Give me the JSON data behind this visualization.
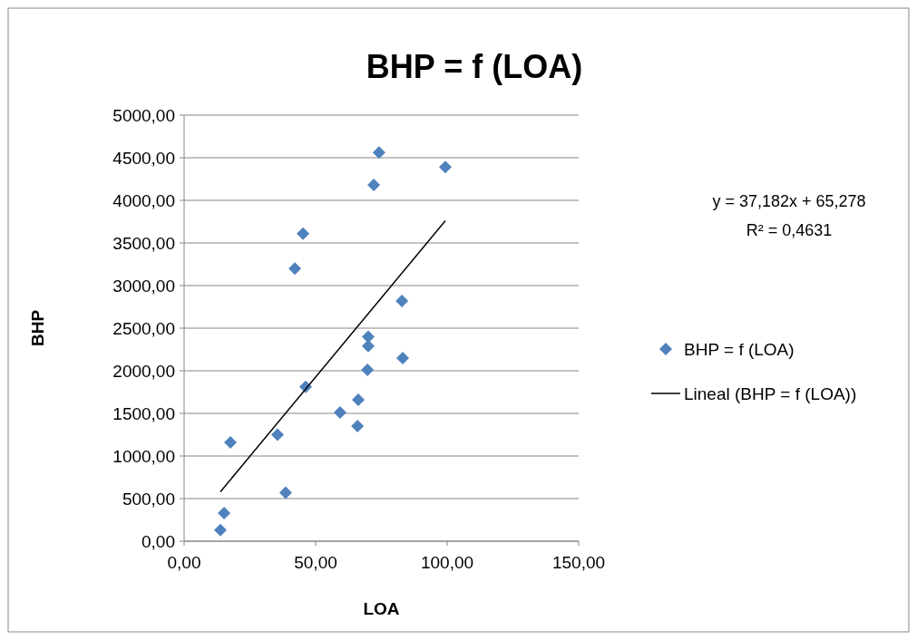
{
  "chart_data": {
    "type": "scatter",
    "title": "BHP = f (LOA)",
    "xlabel": "LOA",
    "ylabel": "BHP",
    "xlim": [
      0,
      150
    ],
    "xticks": [
      {
        "value": 0,
        "label": "0,00"
      },
      {
        "value": 50,
        "label": "50,00"
      },
      {
        "value": 100,
        "label": "100,00"
      },
      {
        "value": 150,
        "label": "150,00"
      }
    ],
    "ylim": [
      0,
      5000
    ],
    "yticks": [
      {
        "value": 0,
        "label": "0,00"
      },
      {
        "value": 500,
        "label": "500,00"
      },
      {
        "value": 1000,
        "label": "1000,00"
      },
      {
        "value": 1500,
        "label": "1500,00"
      },
      {
        "value": 2000,
        "label": "2000,00"
      },
      {
        "value": 2500,
        "label": "2500,00"
      },
      {
        "value": 3000,
        "label": "3000,00"
      },
      {
        "value": 3500,
        "label": "3500,00"
      },
      {
        "value": 4000,
        "label": "4000,00"
      },
      {
        "value": 4500,
        "label": "4500,00"
      },
      {
        "value": 5000,
        "label": "5000,00"
      }
    ],
    "grid": "y",
    "legend": "right",
    "annotations": [
      "y = 37,182x + 65,278\nR² = 0,4631"
    ],
    "series": [
      {
        "name": "BHP = f (LOA)",
        "marker": "diamond",
        "color": "#4f81bd",
        "x": [
          13.8,
          15.2,
          17.6,
          35.5,
          38.6,
          42.1,
          45.2,
          46.2,
          59.3,
          65.9,
          66.2,
          69.7,
          70.0,
          70.0,
          72.1,
          74.1,
          82.8,
          83.1,
          99.3
        ],
        "values": [
          130,
          330,
          1160,
          1250,
          570,
          3200,
          3610,
          1810,
          1510,
          1350,
          1660,
          2010,
          2290,
          2400,
          4180,
          4560,
          2820,
          2150,
          4390
        ]
      },
      {
        "name": "Lineal (BHP = f (LOA))",
        "type": "line",
        "color": "#000000",
        "line_style": "solid",
        "marker": "none",
        "x": [
          13.8,
          99.3
        ],
        "values": [
          580,
          3760
        ]
      }
    ]
  }
}
